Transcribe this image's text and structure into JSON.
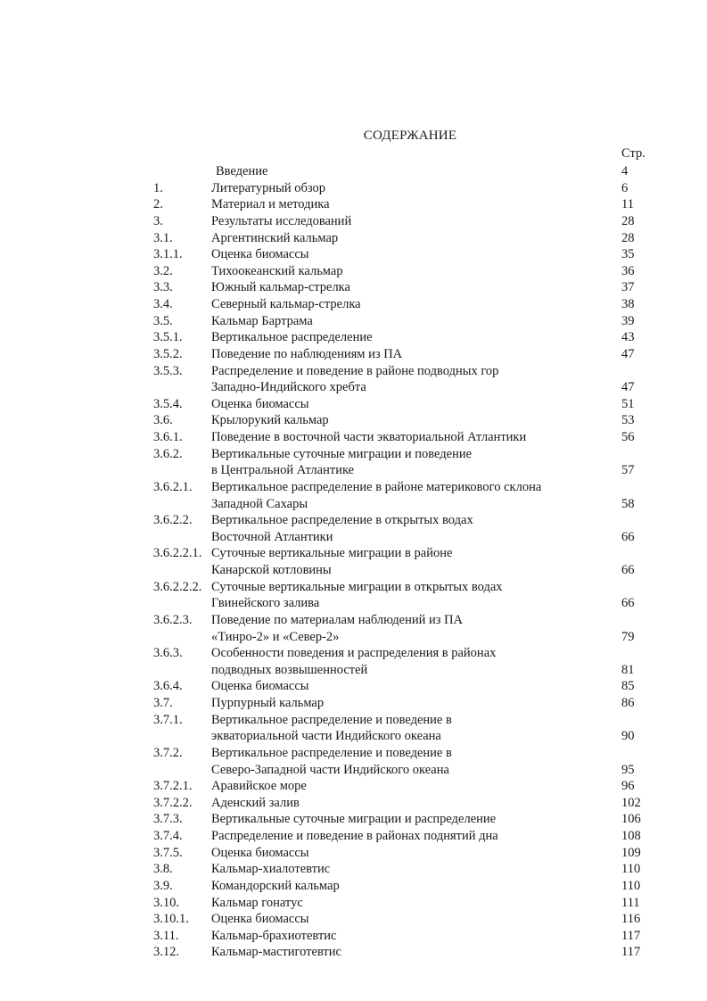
{
  "title": "СОДЕРЖАНИЕ",
  "page_header": "Стр.",
  "entries": [
    {
      "num": "",
      "lines": [
        "Введение"
      ],
      "page": "4"
    },
    {
      "num": "1.",
      "lines": [
        "Литературный обзор"
      ],
      "page": "6"
    },
    {
      "num": "2.",
      "lines": [
        "Материал и методика"
      ],
      "page": "11"
    },
    {
      "num": "3.",
      "lines": [
        "Результаты исследований"
      ],
      "page": "28"
    },
    {
      "num": "3.1.",
      "lines": [
        "Аргентинский кальмар"
      ],
      "page": "28"
    },
    {
      "num": "3.1.1.",
      "lines": [
        "Оценка биомассы"
      ],
      "page": "35"
    },
    {
      "num": "3.2.",
      "lines": [
        "Тихоокеанский кальмар"
      ],
      "page": "36"
    },
    {
      "num": "3.3.",
      "lines": [
        "Южный кальмар-стрелка"
      ],
      "page": "37"
    },
    {
      "num": "3.4.",
      "lines": [
        "Северный кальмар-стрелка"
      ],
      "page": "38"
    },
    {
      "num": "3.5.",
      "lines": [
        "Кальмар Бартрама"
      ],
      "page": "39"
    },
    {
      "num": "3.5.1.",
      "lines": [
        "Вертикальное распределение"
      ],
      "page": "43"
    },
    {
      "num": "3.5.2.",
      "lines": [
        "Поведение по наблюдениям из ПА"
      ],
      "page": "47"
    },
    {
      "num": "3.5.3.",
      "lines": [
        "Распределение и поведение в районе подводных гор",
        "Западно-Индийского хребта"
      ],
      "page": "47"
    },
    {
      "num": "3.5.4.",
      "lines": [
        "Оценка биомассы"
      ],
      "page": "51"
    },
    {
      "num": "3.6.",
      "lines": [
        "Крылорукий кальмар"
      ],
      "page": "53"
    },
    {
      "num": "3.6.1.",
      "lines": [
        "Поведение в восточной части экваториальной Атлантики"
      ],
      "page": "56"
    },
    {
      "num": "3.6.2.",
      "lines": [
        "Вертикальные суточные миграции и поведение",
        "в Центральной Атлантике"
      ],
      "page": "57"
    },
    {
      "num": "3.6.2.1.",
      "lines": [
        "Вертикальное распределение в районе материкового склона",
        "Западной Сахары"
      ],
      "page": "58"
    },
    {
      "num": "3.6.2.2.",
      "lines": [
        "Вертикальное распределение в открытых водах",
        "Восточной Атлантики"
      ],
      "page": "66"
    },
    {
      "num": "3.6.2.2.1.",
      "lines": [
        "Суточные вертикальные миграции  в районе",
        "Канарской котловины"
      ],
      "page": "66"
    },
    {
      "num": "3.6.2.2.2.",
      "lines": [
        "Суточные вертикальные миграции в открытых водах",
        "Гвинейского залива"
      ],
      "page": "66"
    },
    {
      "num": "3.6.2.3.",
      "lines": [
        "Поведение по материалам наблюдений из ПА",
        "«Тинро-2» и «Север-2»"
      ],
      "page": "79"
    },
    {
      "num": "3.6.3.",
      "lines": [
        "Особенности поведения и распределения в районах",
        "подводных возвышенностей"
      ],
      "page": "81"
    },
    {
      "num": "3.6.4.",
      "lines": [
        "Оценка биомассы"
      ],
      "page": "85"
    },
    {
      "num": "3.7.",
      "lines": [
        "Пурпурный кальмар"
      ],
      "page": "86"
    },
    {
      "num": "3.7.1.",
      "lines": [
        "Вертикальное распределение и поведение в",
        "экваториальной части Индийского океана"
      ],
      "page": "90"
    },
    {
      "num": "3.7.2.",
      "lines": [
        "Вертикальное распределение и поведение в",
        "Северо-Западной части Индийского океана"
      ],
      "page": "95"
    },
    {
      "num": "3.7.2.1.",
      "lines": [
        "Аравийское море"
      ],
      "page": "96"
    },
    {
      "num": "3.7.2.2.",
      "lines": [
        "Аденский залив"
      ],
      "page": "102"
    },
    {
      "num": "3.7.3.",
      "lines": [
        "Вертикальные суточные миграции и распределение"
      ],
      "page": "106"
    },
    {
      "num": "3.7.4.",
      "lines": [
        "Распределение и поведение в районах поднятий дна"
      ],
      "page": "108"
    },
    {
      "num": "3.7.5.",
      "lines": [
        "Оценка биомассы"
      ],
      "page": "109"
    },
    {
      "num": "3.8.",
      "lines": [
        "Кальмар-хиалотевтис"
      ],
      "page": "110"
    },
    {
      "num": "3.9.",
      "lines": [
        "Командорский кальмар"
      ],
      "page": "110"
    },
    {
      "num": "3.10.",
      "lines": [
        "Кальмар гонатус"
      ],
      "page": "111"
    },
    {
      "num": "3.10.1.",
      "lines": [
        "Оценка биомассы"
      ],
      "page": "116"
    },
    {
      "num": "3.11.",
      "lines": [
        "Кальмар-брахиотевтис"
      ],
      "page": "117"
    },
    {
      "num": "3.12.",
      "lines": [
        "Кальмар-мастиготевтис"
      ],
      "page": "117"
    }
  ]
}
